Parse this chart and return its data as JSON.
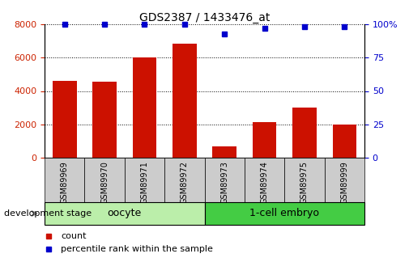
{
  "title": "GDS2387 / 1433476_at",
  "samples": [
    "GSM89969",
    "GSM89970",
    "GSM89971",
    "GSM89972",
    "GSM89973",
    "GSM89974",
    "GSM89975",
    "GSM89999"
  ],
  "counts": [
    4600,
    4550,
    6000,
    6850,
    700,
    2150,
    3000,
    2000
  ],
  "percentile_ranks": [
    100,
    100,
    100,
    100,
    93,
    97,
    98,
    98
  ],
  "groups": [
    {
      "label": "oocyte",
      "indices": [
        0,
        1,
        2,
        3
      ],
      "color": "#aaeaaa"
    },
    {
      "label": "1-cell embryo",
      "indices": [
        4,
        5,
        6,
        7
      ],
      "color": "#55dd55"
    }
  ],
  "bar_color": "#cc1100",
  "dot_color": "#0000cc",
  "left_axis_color": "#cc2200",
  "right_axis_color": "#0000cc",
  "ylim_left": [
    0,
    8000
  ],
  "ylim_right": [
    0,
    100
  ],
  "left_yticks": [
    0,
    2000,
    4000,
    6000,
    8000
  ],
  "right_yticks": [
    0,
    25,
    50,
    75,
    100
  ],
  "grid_color": "#000000",
  "tick_label_bg": "#cccccc",
  "legend_count_label": "count",
  "legend_percentile_label": "percentile rank within the sample",
  "dev_stage_label": "development stage",
  "oocyte_color": "#bbeeaa",
  "embryo_color": "#44cc44"
}
